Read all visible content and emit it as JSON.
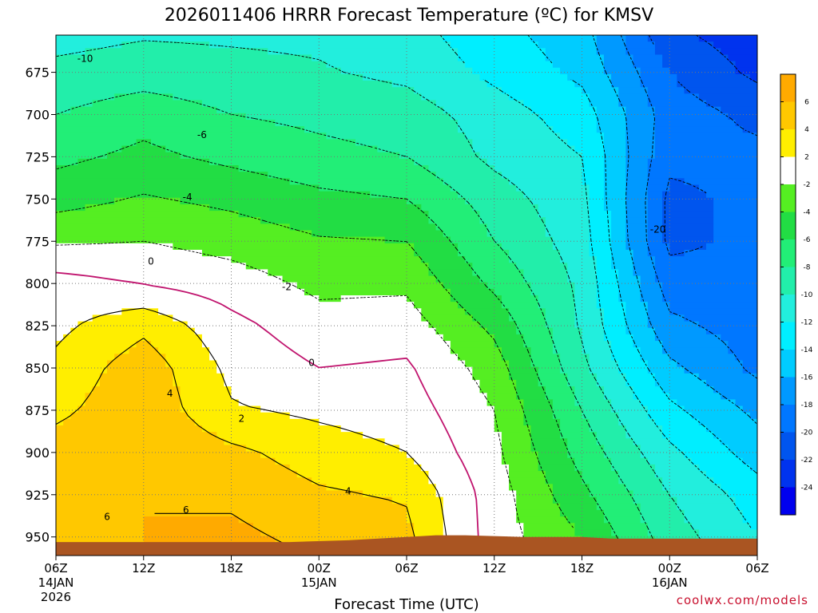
{
  "chart_data": {
    "type": "heatmap",
    "title": "2026011406 HRRR Forecast Temperature (ºC) for KMSV",
    "xlabel": "Forecast Time (UTC)",
    "ylabel": "",
    "credit": "coolwx.com/models",
    "x_ticks": [
      {
        "label": "06Z",
        "sub1": "14JAN",
        "sub2": "2026",
        "hour": 0
      },
      {
        "label": "12Z",
        "sub1": "",
        "sub2": "",
        "hour": 6
      },
      {
        "label": "18Z",
        "sub1": "",
        "sub2": "",
        "hour": 12
      },
      {
        "label": "00Z",
        "sub1": "15JAN",
        "sub2": "",
        "hour": 18
      },
      {
        "label": "06Z",
        "sub1": "",
        "sub2": "",
        "hour": 24
      },
      {
        "label": "12Z",
        "sub1": "",
        "sub2": "",
        "hour": 30
      },
      {
        "label": "18Z",
        "sub1": "",
        "sub2": "",
        "hour": 36
      },
      {
        "label": "00Z",
        "sub1": "16JAN",
        "sub2": "",
        "hour": 42
      },
      {
        "label": "06Z",
        "sub1": "",
        "sub2": "",
        "hour": 48
      }
    ],
    "y_ticks": [
      {
        "label": "675",
        "value": 675
      },
      {
        "label": "700",
        "value": 700
      },
      {
        "label": "725",
        "value": 725
      },
      {
        "label": "750",
        "value": 750
      },
      {
        "label": "775",
        "value": 775
      },
      {
        "label": "800",
        "value": 800
      },
      {
        "label": "825",
        "value": 825
      },
      {
        "label": "850",
        "value": 850
      },
      {
        "label": "875",
        "value": 875
      },
      {
        "label": "900",
        "value": 900
      },
      {
        "label": "925",
        "value": 925
      },
      {
        "label": "950",
        "value": 950
      }
    ],
    "xlim": [
      0,
      48
    ],
    "ylim_hpa": [
      653,
      961
    ],
    "y_reversed": true,
    "grid": true,
    "colorbar": {
      "labels": [
        "6",
        "4",
        "2",
        "-2",
        "-4",
        "-6",
        "-8",
        "-10",
        "-12",
        "-14",
        "-16",
        "-18",
        "-20",
        "-22",
        "-24"
      ],
      "bins": [
        {
          "upper": 8,
          "color": "#ffaa00"
        },
        {
          "upper": 6,
          "color": "#ffc800"
        },
        {
          "upper": 4,
          "color": "#ffee00"
        },
        {
          "upper": 2,
          "color": "#ffffff"
        },
        {
          "upper": -2,
          "color": "#55ee22"
        },
        {
          "upper": -4,
          "color": "#22dd44"
        },
        {
          "upper": -6,
          "color": "#22ee77"
        },
        {
          "upper": -8,
          "color": "#22eeaa"
        },
        {
          "upper": -10,
          "color": "#22eedd"
        },
        {
          "upper": -12,
          "color": "#00eeff"
        },
        {
          "upper": -14,
          "color": "#00ccff"
        },
        {
          "upper": -16,
          "color": "#0099ff"
        },
        {
          "upper": -18,
          "color": "#0077ff"
        },
        {
          "upper": -20,
          "color": "#0055ee"
        },
        {
          "upper": -22,
          "color": "#0033ee"
        },
        {
          "upper": -24,
          "color": "#0000ee"
        }
      ]
    },
    "temperature_profiles": {
      "levels_hpa": [
        660,
        675,
        700,
        725,
        750,
        775,
        800,
        825,
        850,
        875,
        900,
        925,
        950
      ],
      "series": [
        {
          "hour": 0,
          "temps": [
            -10.3,
            -9.5,
            -8.0,
            -6.5,
            -4.8,
            -2.3,
            0.8,
            1.5,
            2.5,
            3.5,
            5.0,
            5.4,
            5.0
          ]
        },
        {
          "hour": 6,
          "temps": [
            -9.8,
            -9.0,
            -6.8,
            -5.5,
            -3.8,
            -2.0,
            -0.1,
            3.5,
            5.2,
            5.5,
            5.8,
            6.0,
            6.0
          ]
        },
        {
          "hour": 12,
          "temps": [
            -10.0,
            -9.4,
            -8.0,
            -6.5,
            -4.5,
            -2.8,
            -1.0,
            0.6,
            1.5,
            2.2,
            4.5,
            5.6,
            6.5
          ]
        },
        {
          "hour": 18,
          "temps": [
            -10.2,
            -9.8,
            -8.5,
            -7.4,
            -5.5,
            -3.8,
            -2.5,
            -1.2,
            0.0,
            1.6,
            3.0,
            4.3,
            5.4
          ]
        },
        {
          "hour": 24,
          "temps": [
            -11.0,
            -10.5,
            -9.0,
            -8.0,
            -6.0,
            -4.0,
            -2.4,
            -1.0,
            0.3,
            1.0,
            2.0,
            3.8,
            4.5
          ]
        },
        {
          "hour": 30,
          "temps": [
            -13.0,
            -12.5,
            -11.0,
            -10.5,
            -9.0,
            -8.0,
            -6.5,
            -4.5,
            -3.0,
            -2.0,
            -1.5,
            -1.0,
            -1.0
          ]
        },
        {
          "hour": 36,
          "temps": [
            -15.0,
            -14.5,
            -13.0,
            -12.0,
            -11.5,
            -11.0,
            -10.5,
            -10.3,
            -9.5,
            -8.0,
            -6.8,
            -5.5,
            -4.0
          ]
        },
        {
          "hour": 42,
          "temps": [
            -21.0,
            -20.0,
            -19.0,
            -19.5,
            -20.5,
            -20.5,
            -19.0,
            -17.5,
            -15.5,
            -13.5,
            -11.5,
            -10.0,
            -9.0
          ]
        },
        {
          "hour": 48,
          "temps": [
            -23.0,
            -22.5,
            -20.5,
            -19.5,
            -19.5,
            -19.5,
            -19.5,
            -19.0,
            -18.5,
            -16.5,
            -15.0,
            -13.0,
            -12.0
          ]
        }
      ]
    },
    "contour_labels": [
      {
        "text": "-10",
        "hour": 2.0,
        "hpa": 667
      },
      {
        "text": "-6",
        "hour": 10.0,
        "hpa": 712
      },
      {
        "text": "-4",
        "hour": 9.0,
        "hpa": 749
      },
      {
        "text": "0",
        "hour": 6.5,
        "hpa": 787
      },
      {
        "text": "-2",
        "hour": 15.8,
        "hpa": 802
      },
      {
        "text": "0",
        "hour": 17.5,
        "hpa": 847
      },
      {
        "text": "4",
        "hour": 7.8,
        "hpa": 865
      },
      {
        "text": "2",
        "hour": 12.7,
        "hpa": 880
      },
      {
        "text": "4",
        "hour": 20.0,
        "hpa": 923
      },
      {
        "text": "6",
        "hour": 3.5,
        "hpa": 938
      },
      {
        "text": "6",
        "hour": 8.9,
        "hpa": 934
      },
      {
        "text": "-20",
        "hour": 41.2,
        "hpa": 768
      }
    ],
    "surface_pressure": {
      "hours": [
        0,
        4,
        8,
        12,
        16,
        20,
        24,
        26,
        28,
        32,
        34,
        36,
        38,
        40,
        44,
        48
      ],
      "hpa": [
        953,
        953,
        953,
        953,
        953,
        952,
        950,
        949,
        949,
        950,
        950,
        950,
        951,
        951,
        951,
        951
      ]
    },
    "terrain_color": "#aa5522"
  }
}
